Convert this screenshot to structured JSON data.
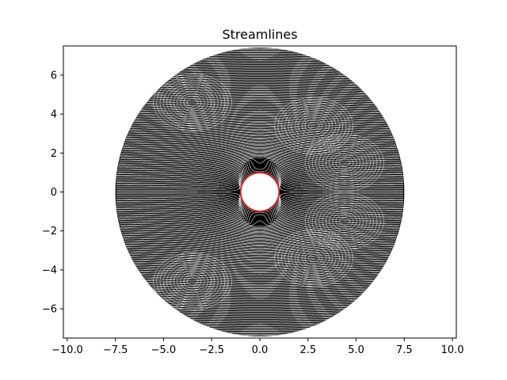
{
  "chart_data": {
    "type": "line",
    "title": "Streamlines",
    "xlabel": "",
    "ylabel": "",
    "xlim": [
      -10.2,
      10.2
    ],
    "ylim": [
      -7.5,
      7.5
    ],
    "x_ticks": [
      -10.0,
      -7.5,
      -5.0,
      -2.5,
      0.0,
      2.5,
      5.0,
      7.5,
      10.0
    ],
    "x_tick_labels": [
      "−10.0",
      "−7.5",
      "−5.0",
      "−2.5",
      "0.0",
      "2.5",
      "5.0",
      "7.5",
      "10.0"
    ],
    "y_ticks": [
      -6,
      -4,
      -2,
      0,
      2,
      4,
      6
    ],
    "y_tick_labels": [
      "−6",
      "−4",
      "−2",
      "0",
      "2",
      "4",
      "6"
    ],
    "grid": false,
    "domain_radius": 7.5,
    "cylinder": {
      "center": [
        0,
        0
      ],
      "radius": 1.0,
      "color": "#d62728"
    },
    "streamline_color": "#000000",
    "background_color": "#ffffff"
  }
}
